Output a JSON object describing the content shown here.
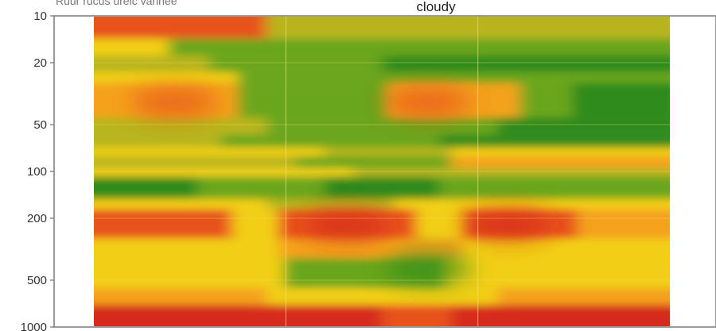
{
  "corner_caption": "Ruur rucus ureic varlnee",
  "chart_data": {
    "type": "heatmap",
    "title": "cloudy",
    "xlabel": "",
    "ylabel": "",
    "y_scale": "log",
    "y_inverted": true,
    "ylim": [
      10,
      1000
    ],
    "y_ticks": [
      {
        "value": 10,
        "label": "10"
      },
      {
        "value": 20,
        "label": "20"
      },
      {
        "value": 50,
        "label": "50"
      },
      {
        "value": 100,
        "label": "100"
      },
      {
        "value": 200,
        "label": "200"
      },
      {
        "value": 500,
        "label": "500"
      },
      {
        "value": 1000,
        "label": "1000"
      }
    ],
    "x_divisions": 3,
    "color_scale": [
      "#2e8b1a",
      "#6aa61c",
      "#b8b51c",
      "#f2cf12",
      "#f4a21a",
      "#e8531c",
      "#d52a1e"
    ],
    "grid": true,
    "legend": "none",
    "bands": [
      {
        "y_top": 10,
        "y_bottom": 14,
        "segments": [
          {
            "x0": 0,
            "x1": 0.3,
            "level": 5
          },
          {
            "x0": 0.3,
            "x1": 1.0,
            "level": 2
          }
        ]
      },
      {
        "y_top": 14,
        "y_bottom": 18,
        "segments": [
          {
            "x0": 0,
            "x1": 0.13,
            "level": 3
          },
          {
            "x0": 0.13,
            "x1": 1.0,
            "level": 1
          }
        ]
      },
      {
        "y_top": 18,
        "y_bottom": 23,
        "segments": [
          {
            "x0": 0,
            "x1": 0.2,
            "level": 2
          },
          {
            "x0": 0.2,
            "x1": 0.5,
            "level": 1
          },
          {
            "x0": 0.5,
            "x1": 1.0,
            "level": 0
          }
        ]
      },
      {
        "y_top": 23,
        "y_bottom": 27,
        "segments": [
          {
            "x0": 0,
            "x1": 0.25,
            "level": 3
          },
          {
            "x0": 0.25,
            "x1": 1.0,
            "level": 1
          }
        ]
      },
      {
        "y_top": 27,
        "y_bottom": 45,
        "segments": [
          {
            "x0": 0,
            "x1": 0.25,
            "level": 4
          },
          {
            "x0": 0.25,
            "x1": 0.51,
            "level": 1
          },
          {
            "x0": 0.51,
            "x1": 0.74,
            "level": 4
          },
          {
            "x0": 0.74,
            "x1": 0.83,
            "level": 1
          },
          {
            "x0": 0.83,
            "x1": 1.0,
            "level": 0
          }
        ]
      },
      {
        "y_top": 45,
        "y_bottom": 58,
        "segments": [
          {
            "x0": 0,
            "x1": 0.3,
            "level": 2
          },
          {
            "x0": 0.3,
            "x1": 0.7,
            "level": 1
          },
          {
            "x0": 0.7,
            "x1": 1.0,
            "level": 0
          }
        ]
      },
      {
        "y_top": 58,
        "y_bottom": 70,
        "segments": [
          {
            "x0": 0,
            "x1": 0.22,
            "level": 2
          },
          {
            "x0": 0.22,
            "x1": 0.6,
            "level": 1
          },
          {
            "x0": 0.6,
            "x1": 1.0,
            "level": 0
          }
        ]
      },
      {
        "y_top": 70,
        "y_bottom": 80,
        "segments": [
          {
            "x0": 0,
            "x1": 0.4,
            "level": 3
          },
          {
            "x0": 0.4,
            "x1": 0.62,
            "level": 2
          },
          {
            "x0": 0.62,
            "x1": 1.0,
            "level": 3
          }
        ]
      },
      {
        "y_top": 80,
        "y_bottom": 95,
        "segments": [
          {
            "x0": 0,
            "x1": 0.35,
            "level": 2
          },
          {
            "x0": 0.35,
            "x1": 0.62,
            "level": 1
          },
          {
            "x0": 0.62,
            "x1": 1.0,
            "level": 4
          }
        ]
      },
      {
        "y_top": 95,
        "y_bottom": 108,
        "segments": [
          {
            "x0": 0,
            "x1": 0.45,
            "level": 3
          },
          {
            "x0": 0.45,
            "x1": 1.0,
            "level": 2
          }
        ]
      },
      {
        "y_top": 108,
        "y_bottom": 150,
        "segments": [
          {
            "x0": 0,
            "x1": 0.18,
            "level": 0
          },
          {
            "x0": 0.18,
            "x1": 0.4,
            "level": 1
          },
          {
            "x0": 0.4,
            "x1": 0.6,
            "level": 0
          },
          {
            "x0": 0.6,
            "x1": 1.0,
            "level": 1
          }
        ]
      },
      {
        "y_top": 150,
        "y_bottom": 175,
        "segments": [
          {
            "x0": 0,
            "x1": 0.3,
            "level": 3
          },
          {
            "x0": 0.3,
            "x1": 0.52,
            "level": 2
          },
          {
            "x0": 0.52,
            "x1": 1.0,
            "level": 3
          }
        ]
      },
      {
        "y_top": 175,
        "y_bottom": 270,
        "segments": [
          {
            "x0": 0,
            "x1": 0.24,
            "level": 5
          },
          {
            "x0": 0.24,
            "x1": 0.32,
            "level": 3
          },
          {
            "x0": 0.32,
            "x1": 0.56,
            "level": 5
          },
          {
            "x0": 0.56,
            "x1": 0.64,
            "level": 3
          },
          {
            "x0": 0.64,
            "x1": 0.84,
            "level": 5
          },
          {
            "x0": 0.84,
            "x1": 1.0,
            "level": 4
          }
        ]
      },
      {
        "y_top": 270,
        "y_bottom": 360,
        "segments": [
          {
            "x0": 0,
            "x1": 0.32,
            "level": 3
          },
          {
            "x0": 0.32,
            "x1": 0.64,
            "level": 4
          },
          {
            "x0": 0.64,
            "x1": 1.0,
            "level": 3
          }
        ]
      },
      {
        "y_top": 360,
        "y_bottom": 560,
        "segments": [
          {
            "x0": 0,
            "x1": 0.33,
            "level": 3
          },
          {
            "x0": 0.33,
            "x1": 0.61,
            "level": 1
          },
          {
            "x0": 0.61,
            "x1": 1.0,
            "level": 3
          }
        ]
      },
      {
        "y_top": 560,
        "y_bottom": 720,
        "segments": [
          {
            "x0": 0,
            "x1": 0.3,
            "level": 4
          },
          {
            "x0": 0.3,
            "x1": 0.7,
            "level": 3
          },
          {
            "x0": 0.7,
            "x1": 1.0,
            "level": 4
          }
        ]
      },
      {
        "y_top": 720,
        "y_bottom": 1000,
        "segments": [
          {
            "x0": 0,
            "x1": 0.5,
            "level": 6
          },
          {
            "x0": 0.5,
            "x1": 0.62,
            "level": 5
          },
          {
            "x0": 0.62,
            "x1": 1.0,
            "level": 6
          }
        ]
      }
    ],
    "hotspots": [
      {
        "x": 0.44,
        "y": 220,
        "level": 6
      },
      {
        "x": 0.72,
        "y": 220,
        "level": 6
      },
      {
        "x": 0.14,
        "y": 36,
        "level": 5
      },
      {
        "x": 0.58,
        "y": 36,
        "level": 5
      },
      {
        "x": 0.58,
        "y": 420,
        "level": 0
      }
    ]
  }
}
